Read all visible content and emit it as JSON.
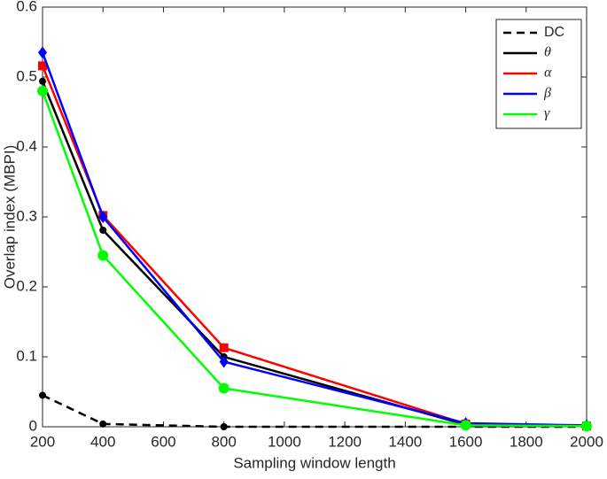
{
  "chart_data": {
    "type": "line",
    "x_label": "Sampling window length",
    "y_label": "Overlap index (MBPI)",
    "x": [
      200,
      400,
      800,
      1600,
      2000
    ],
    "series": [
      {
        "name": "DC",
        "color": "#000000",
        "dashed": true,
        "marker": "circle",
        "values": [
          0.045,
          0.004,
          0.0,
          0.0,
          0.0
        ]
      },
      {
        "name": "θ",
        "color": "#000000",
        "dashed": false,
        "marker": "circle",
        "values": [
          0.494,
          0.281,
          0.1,
          0.003,
          0.001
        ]
      },
      {
        "name": "α",
        "color": "#ff0000",
        "dashed": false,
        "marker": "square",
        "values": [
          0.516,
          0.302,
          0.113,
          0.004,
          0.001
        ]
      },
      {
        "name": "β",
        "color": "#0000ff",
        "dashed": false,
        "marker": "diamond",
        "values": [
          0.535,
          0.3,
          0.093,
          0.005,
          0.002
        ]
      },
      {
        "name": "γ",
        "color": "#00ff00",
        "dashed": false,
        "marker": "big-circle",
        "values": [
          0.48,
          0.245,
          0.055,
          0.002,
          0.001
        ]
      }
    ],
    "xlim": [
      200,
      2000
    ],
    "xticks": [
      200,
      400,
      600,
      800,
      1000,
      1200,
      1400,
      1600,
      1800,
      2000
    ],
    "ylim": [
      0,
      0.6
    ],
    "yticks": [
      0,
      0.1,
      0.2,
      0.3,
      0.4,
      0.5,
      0.6
    ],
    "grid": false,
    "legend": "top-right"
  }
}
